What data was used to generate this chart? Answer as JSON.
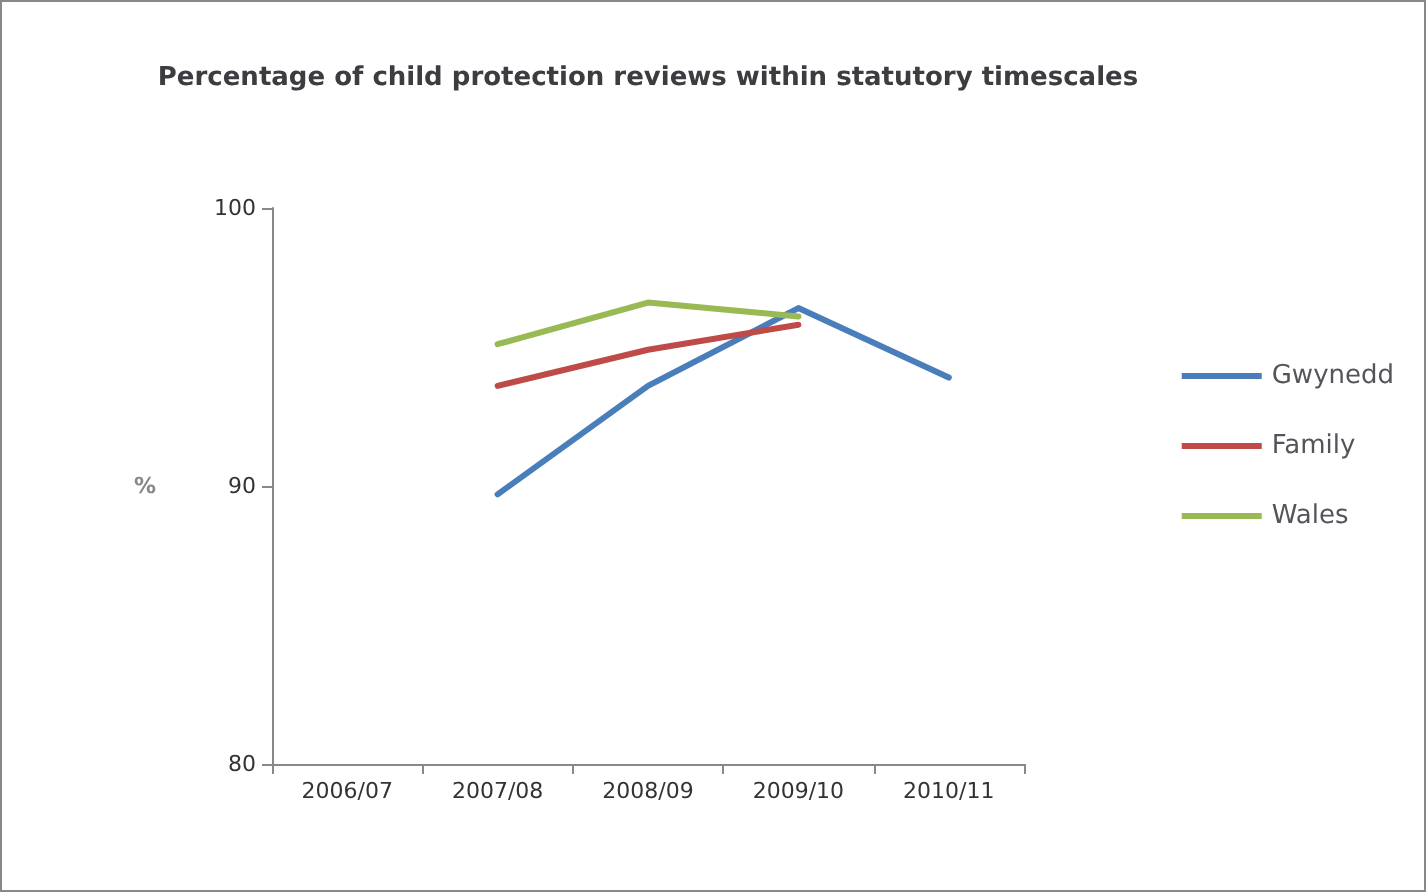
{
  "chart_data": {
    "type": "line",
    "title": "Percentage of child protection reviews within statutory timescales",
    "ylabel": "%",
    "categories": [
      "2006/07",
      "2007/08",
      "2008/09",
      "2009/10",
      "2010/11"
    ],
    "series": [
      {
        "name": "Gwynedd",
        "color": "#4a7ebb",
        "values": [
          null,
          89.7,
          93.6,
          96.4,
          93.9
        ]
      },
      {
        "name": "Family",
        "color": "#be4b48",
        "values": [
          null,
          93.6,
          94.9,
          95.8,
          null
        ]
      },
      {
        "name": "Wales",
        "color": "#98b954",
        "values": [
          null,
          95.1,
          96.6,
          96.1,
          null
        ]
      }
    ],
    "ylim": [
      80,
      100
    ],
    "yticks": [
      80,
      90,
      100
    ],
    "grid": false,
    "legend": "right",
    "marker": "none",
    "line_style": "solid"
  }
}
